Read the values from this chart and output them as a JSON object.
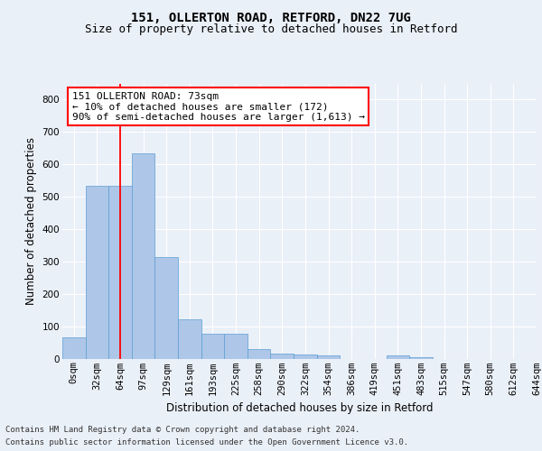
{
  "title_line1": "151, OLLERTON ROAD, RETFORD, DN22 7UG",
  "title_line2": "Size of property relative to detached houses in Retford",
  "xlabel": "Distribution of detached houses by size in Retford",
  "ylabel": "Number of detached properties",
  "footer_line1": "Contains HM Land Registry data © Crown copyright and database right 2024.",
  "footer_line2": "Contains public sector information licensed under the Open Government Licence v3.0.",
  "bin_labels": [
    "0sqm",
    "32sqm",
    "64sqm",
    "97sqm",
    "129sqm",
    "161sqm",
    "193sqm",
    "225sqm",
    "258sqm",
    "290sqm",
    "322sqm",
    "354sqm",
    "386sqm",
    "419sqm",
    "451sqm",
    "483sqm",
    "515sqm",
    "547sqm",
    "580sqm",
    "612sqm",
    "644sqm"
  ],
  "bar_values": [
    65,
    535,
    535,
    635,
    313,
    120,
    78,
    78,
    30,
    15,
    12,
    10,
    0,
    0,
    10,
    5,
    0,
    0,
    0,
    0
  ],
  "bar_color": "#aec6e8",
  "bar_edge_color": "#5a9fd4",
  "ylim": [
    0,
    850
  ],
  "yticks": [
    0,
    100,
    200,
    300,
    400,
    500,
    600,
    700,
    800
  ],
  "vline_x": 2.0,
  "annotation_text": "151 OLLERTON ROAD: 73sqm\n← 10% of detached houses are smaller (172)\n90% of semi-detached houses are larger (1,613) →",
  "annotation_box_color": "white",
  "annotation_box_edge_color": "red",
  "vline_color": "red",
  "background_color": "#eaf0f8",
  "axes_bg_color": "#eaf0f8",
  "grid_color": "white",
  "title_fontsize": 10,
  "subtitle_fontsize": 9,
  "tick_label_fontsize": 7.5,
  "ylabel_fontsize": 8.5,
  "xlabel_fontsize": 8.5,
  "annotation_fontsize": 8,
  "footer_fontsize": 6.5
}
